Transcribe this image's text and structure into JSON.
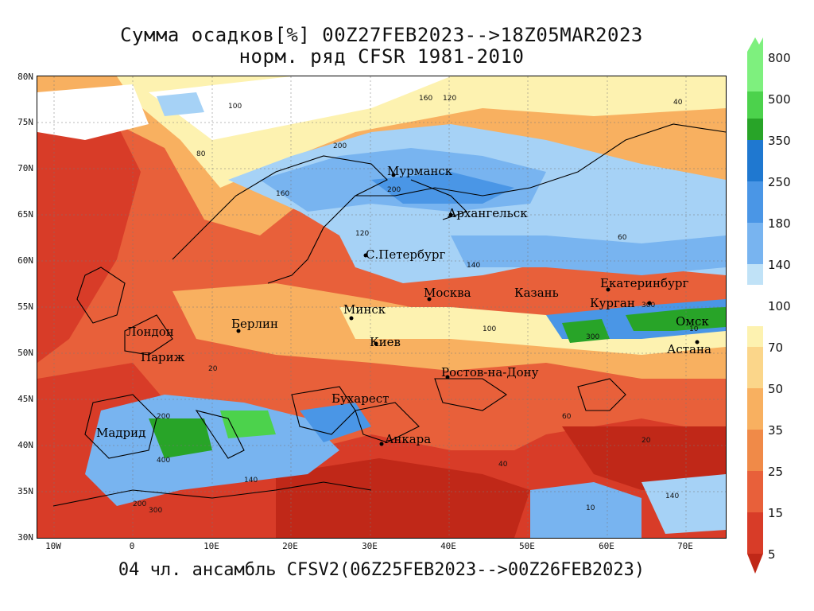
{
  "title_line1": "Сумма осадков[%] 00Z27FEB2023-->18Z05MAR2023",
  "title_line2": "норм. ряд CFSR 1981-2010",
  "footer": "04 чл. ансамбль CFSV2(06Z25FEB2023-->00Z26FEB2023)",
  "lat_labels": [
    "80N",
    "75N",
    "70N",
    "65N",
    "60N",
    "55N",
    "50N",
    "45N",
    "40N",
    "35N",
    "30N"
  ],
  "lon_labels": [
    "10W",
    "0",
    "10E",
    "20E",
    "30E",
    "40E",
    "50E",
    "60E",
    "70E"
  ],
  "cities": [
    "Мурманск",
    "Архангельск",
    "С.Петербург",
    "Москва",
    "Казань",
    "Екатеринбург",
    "Курган",
    "Омск",
    "Астана",
    "Минск",
    "Берлин",
    "Лондон",
    "Париж",
    "Киев",
    "Ростов-на-Дону",
    "Бухарест",
    "Мадрид",
    "Анкара"
  ],
  "colorbar_labels": [
    "800",
    "500",
    "350",
    "250",
    "180",
    "140",
    "100",
    "70",
    "50",
    "35",
    "25",
    "15",
    "5"
  ],
  "colorbar_colors": [
    "#7ef07e",
    "#4cd24c",
    "#28a428",
    "#1f78d0",
    "#4a96e6",
    "#78b4f0",
    "#a6d2f6",
    "#d2ecf8",
    "#fdf2b0",
    "#fbd68a",
    "#f8b060",
    "#f08a48",
    "#e8603a",
    "#d83c28",
    "#c02818"
  ],
  "contour_labels": [
    "160",
    "120",
    "100",
    "80",
    "200",
    "140",
    "60",
    "40",
    "20",
    "300",
    "10",
    "400"
  ]
}
